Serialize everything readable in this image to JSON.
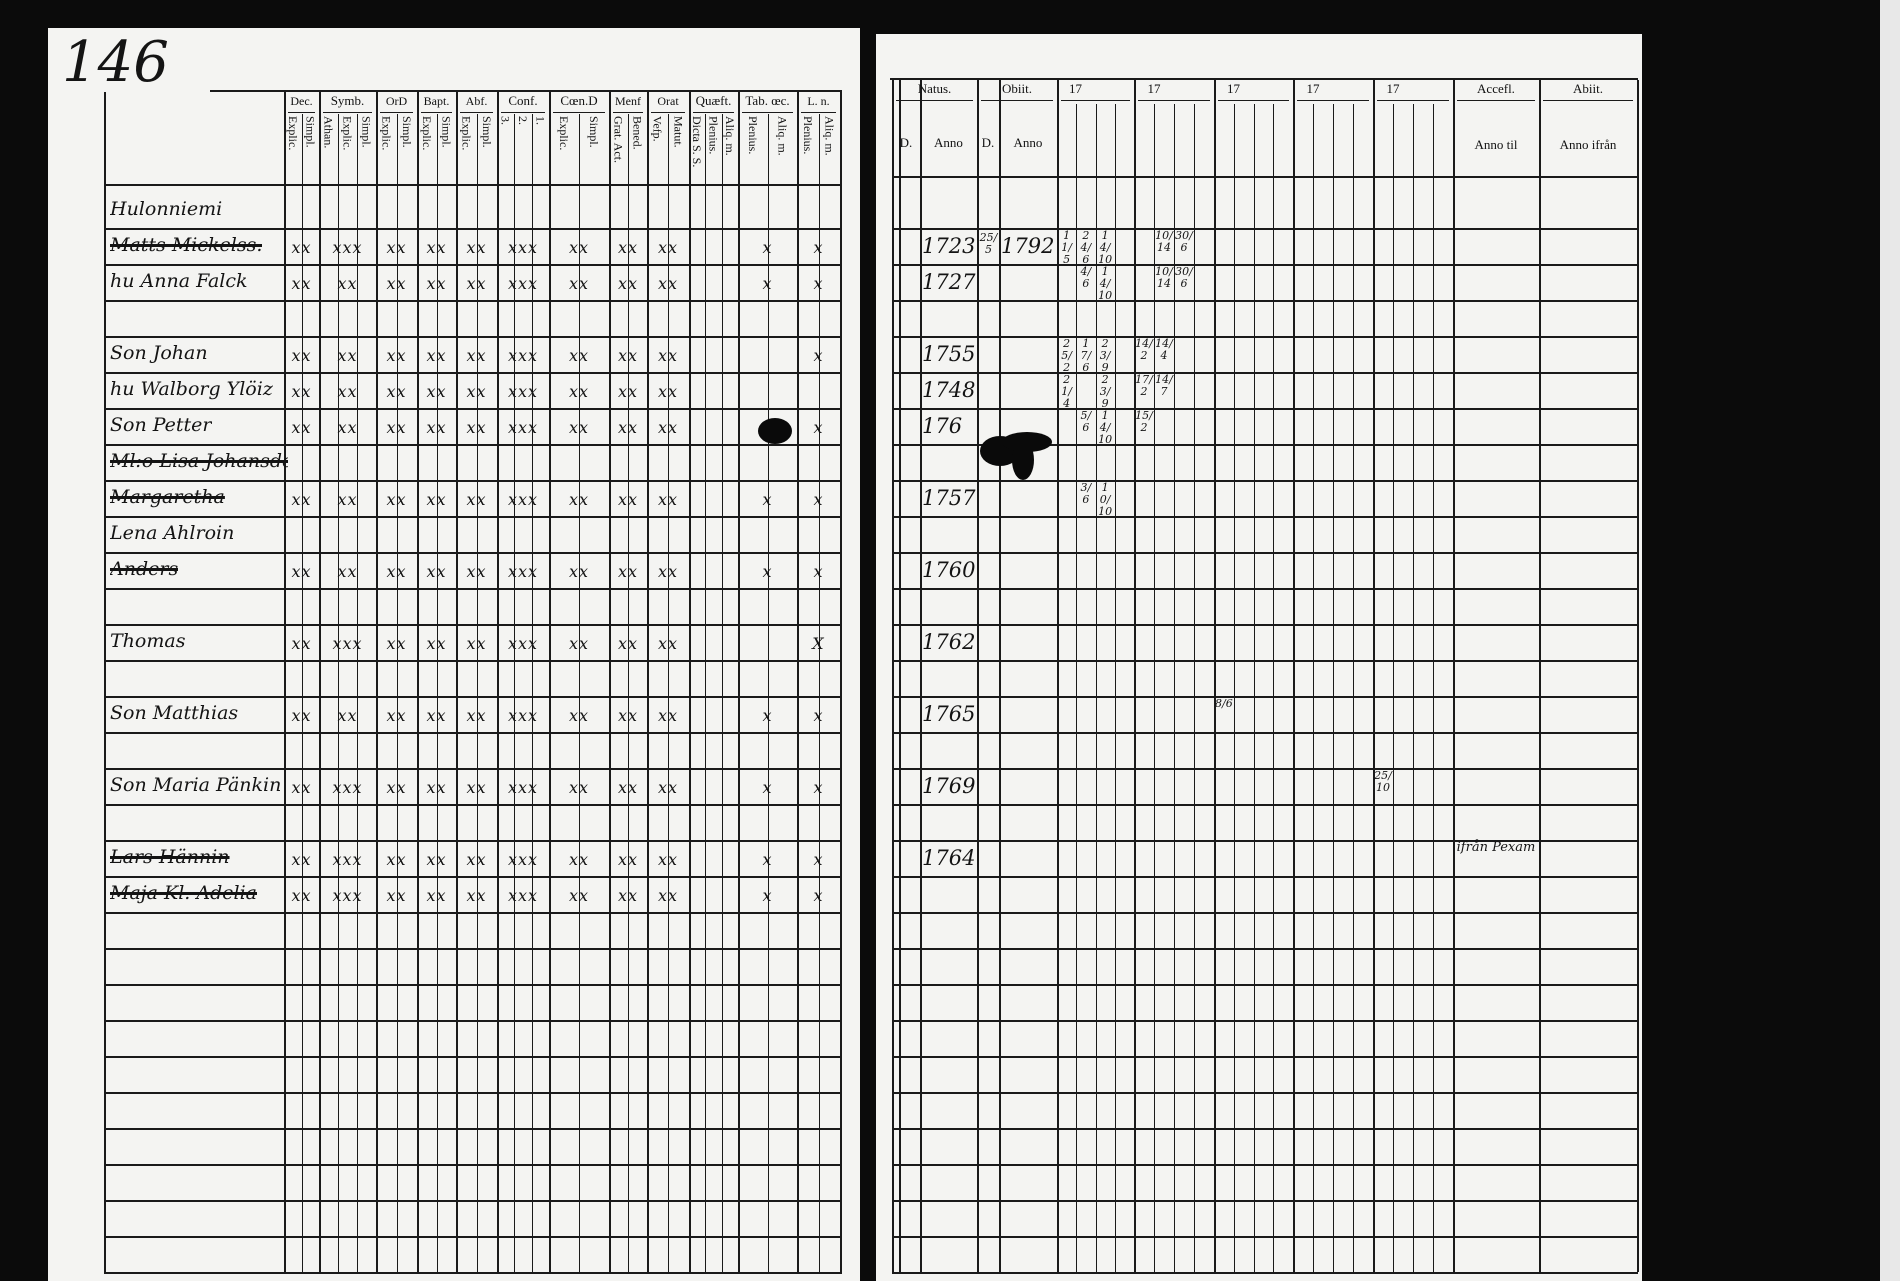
{
  "page_number": "146",
  "left_table": {
    "groups": [
      {
        "label": "Dec.",
        "subs": [
          "Explic.",
          "Simpl."
        ]
      },
      {
        "label": "Symb.",
        "subs": [
          "Athan.",
          "Explic.",
          "Simpl."
        ]
      },
      {
        "label": "OrD",
        "subs": [
          "Explic.",
          "Simpl."
        ]
      },
      {
        "label": "Bapt.",
        "subs": [
          "Explic.",
          "Simpl."
        ]
      },
      {
        "label": "Abf.",
        "subs": [
          "Explic.",
          "Simpl."
        ]
      },
      {
        "label": "Conf.",
        "subs": [
          "3.",
          "2.",
          "1."
        ]
      },
      {
        "label": "Cœn.D",
        "subs": [
          "Explic.",
          "Simpl."
        ]
      },
      {
        "label": "Menf",
        "subs": [
          "Grat. Act.",
          "Bened."
        ]
      },
      {
        "label": "Orat",
        "subs": [
          "Vefp.",
          "Matut."
        ]
      },
      {
        "label": "Quæft.",
        "subs": [
          "Dicta S. S.",
          "Plenius.",
          "Aliq. m."
        ]
      },
      {
        "label": "Tab. œc.",
        "subs": [
          "Plenius.",
          "Aliq. m."
        ]
      },
      {
        "label": "L. n.",
        "subs": [
          "Plenius.",
          "Aliq. m."
        ]
      }
    ]
  },
  "right_table": {
    "natus": {
      "label": "Natus.",
      "day": "D.",
      "year": "Anno"
    },
    "obiit": {
      "label": "Obiit.",
      "day": "D.",
      "year": "Anno"
    },
    "years": [
      "17",
      "17",
      "17",
      "17",
      "17"
    ],
    "accessit": {
      "label": "Accefl.",
      "sub": "Anno til"
    },
    "abiit": {
      "label": "Abiit.",
      "sub": "Anno ifrån"
    }
  },
  "entries": [
    {
      "name": "Hulonniemi",
      "struck": false,
      "marks": [],
      "natus": "",
      "obiit_day": "",
      "obiit_year": "",
      "comm": [],
      "accessit": ""
    },
    {
      "name": "Matts Mickelss.",
      "struck": true,
      "marks": [
        "xx",
        "xxx",
        "xx",
        "xx",
        "xx",
        "xxx",
        "xx",
        "xx",
        "xx",
        "",
        "x",
        "x"
      ],
      "natus": "1723",
      "obiit_day": "25/5",
      "obiit_year": "1792",
      "comm": [
        "11/5",
        "24/6",
        "14/10",
        "",
        "",
        "10/14",
        "30/6"
      ],
      "accessit": ""
    },
    {
      "name": "hu Anna Falck",
      "struck": false,
      "marks": [
        "xx",
        "xx",
        "xx",
        "xx",
        "xx",
        "xxx",
        "xx",
        "xx",
        "xx",
        "",
        "x",
        "x"
      ],
      "natus": "1727",
      "obiit_day": "",
      "obiit_year": "",
      "comm": [
        "",
        "4/6",
        "14/10",
        "",
        "",
        "10/14",
        "30/6"
      ],
      "accessit": ""
    },
    {
      "name": "Son Johan",
      "struck": false,
      "marks": [
        "xx",
        "xx",
        "xx",
        "xx",
        "xx",
        "xxx",
        "xx",
        "xx",
        "xx",
        "",
        "",
        "x"
      ],
      "natus": "1755",
      "obiit_day": "",
      "obiit_year": "",
      "comm": [
        "25/2",
        "17/6",
        "23/9",
        "",
        "14/2",
        "14/4"
      ],
      "accessit": ""
    },
    {
      "name": "hu Walborg Ylöiz",
      "struck": false,
      "marks": [
        "xx",
        "xx",
        "xx",
        "xx",
        "xx",
        "xxx",
        "xx",
        "xx",
        "xx",
        "",
        "",
        ""
      ],
      "natus": "1748",
      "obiit_day": "",
      "obiit_year": "",
      "comm": [
        "21/4",
        "",
        "23/9",
        "",
        "17/2",
        "14/7"
      ],
      "accessit": ""
    },
    {
      "name": "Son Petter",
      "struck": false,
      "marks": [
        "xx",
        "xx",
        "xx",
        "xx",
        "xx",
        "xxx",
        "xx",
        "xx",
        "xx",
        "",
        "",
        "x"
      ],
      "natus": "176",
      "obiit_day": "",
      "obiit_year": "",
      "comm": [
        "",
        "5/6",
        "14/10",
        "",
        "15/2"
      ],
      "accessit": ""
    },
    {
      "name": "Ml:o Lisa Johansdotter",
      "struck": true,
      "marks": [],
      "natus": "",
      "obiit_day": "",
      "obiit_year": "",
      "comm": [],
      "accessit": ""
    },
    {
      "name": "Margaretha",
      "struck": true,
      "marks": [
        "xx",
        "xx",
        "xx",
        "xx",
        "xx",
        "xxx",
        "xx",
        "xx",
        "xx",
        "",
        "x",
        "x"
      ],
      "natus": "1757",
      "obiit_day": "",
      "obiit_year": "",
      "comm": [
        "",
        "3/6",
        "10/10"
      ],
      "accessit": ""
    },
    {
      "name": "Lena Ahlroin",
      "struck": false,
      "marks": [],
      "natus": "",
      "obiit_day": "",
      "obiit_year": "",
      "comm": [],
      "accessit": ""
    },
    {
      "name": "Anders",
      "struck": true,
      "marks": [
        "xx",
        "xx",
        "xx",
        "xx",
        "xx",
        "xxx",
        "xx",
        "xx",
        "xx",
        "",
        "x",
        "x"
      ],
      "natus": "1760",
      "obiit_day": "",
      "obiit_year": "",
      "comm": [],
      "accessit": ""
    },
    {
      "name": "Thomas",
      "struck": false,
      "marks": [
        "xx",
        "xxx",
        "xx",
        "xx",
        "xx",
        "xxx",
        "xx",
        "xx",
        "xx",
        "",
        "",
        "X"
      ],
      "natus": "1762",
      "obiit_day": "",
      "obiit_year": "",
      "comm": [],
      "accessit": ""
    },
    {
      "name": "Son Matthias",
      "struck": false,
      "marks": [
        "xx",
        "xx",
        "xx",
        "xx",
        "xx",
        "xxx",
        "xx",
        "xx",
        "xx",
        "",
        "x",
        "x"
      ],
      "natus": "1765",
      "obiit_day": "",
      "obiit_year": "",
      "comm": [
        "",
        "",
        "",
        "",
        "",
        "",
        "",
        "",
        "8/6"
      ],
      "accessit": ""
    },
    {
      "name": "Son Maria Pänkin",
      "struck": false,
      "marks": [
        "xx",
        "xxx",
        "xx",
        "xx",
        "xx",
        "xxx",
        "xx",
        "xx",
        "xx",
        "",
        "x",
        "x"
      ],
      "natus": "1769",
      "obiit_day": "",
      "obiit_year": "",
      "comm": [
        "",
        "",
        "",
        "",
        "",
        "",
        "",
        "",
        "",
        "",
        "",
        "",
        "",
        "",
        "",
        "",
        "25/10"
      ],
      "accessit": ""
    },
    {
      "name": "Lars Hännin",
      "struck": true,
      "marks": [
        "xx",
        "xxx",
        "xx",
        "xx",
        "xx",
        "xxx",
        "xx",
        "xx",
        "xx",
        "",
        "x",
        "x"
      ],
      "natus": "1764",
      "obiit_day": "",
      "obiit_year": "",
      "comm": [],
      "accessit": "ifrån Pexam"
    },
    {
      "name": "Maja Kl. Adelia",
      "struck": true,
      "marks": [
        "xx",
        "xxx",
        "xx",
        "xx",
        "xx",
        "xxx",
        "xx",
        "xx",
        "xx",
        "",
        "x",
        "x"
      ],
      "natus": "",
      "obiit_day": "",
      "obiit_year": "",
      "comm": [],
      "accessit": ""
    }
  ]
}
